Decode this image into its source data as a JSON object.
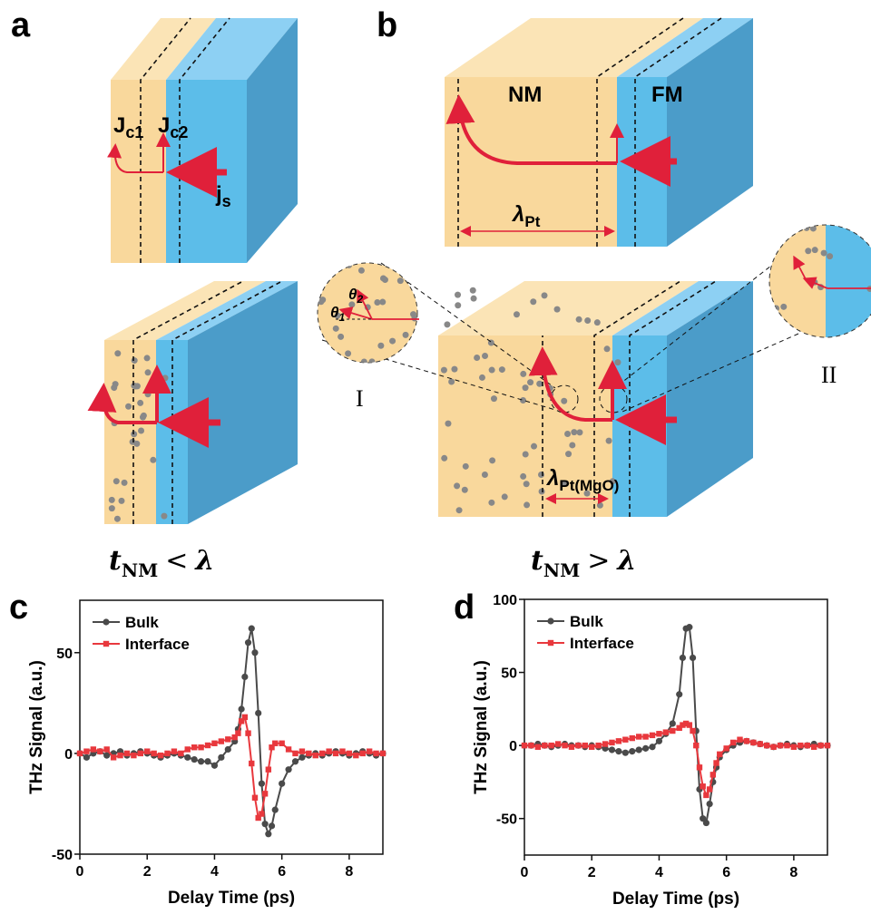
{
  "panel_labels": [
    "a",
    "b",
    "c",
    "d"
  ],
  "diagram_a": {
    "j_c1": {
      "symbol": "J",
      "sub": "c1"
    },
    "j_c2": {
      "symbol": "J",
      "sub": "c2"
    },
    "j_s": {
      "symbol": "j",
      "sub": "s"
    },
    "caption": {
      "symbol": "t",
      "sub": "NM",
      "relation": "<",
      "rhs": "λ"
    }
  },
  "diagram_b": {
    "nm": "NM",
    "fm": "FM",
    "lambda_pt": {
      "symbol": "λ",
      "sub": "Pt"
    },
    "theta_2": {
      "symbol": "θ",
      "sub": "2"
    },
    "theta_1": {
      "symbol": "θ",
      "sub": "1"
    },
    "inset_1": "I",
    "inset_2": "II",
    "lambda_pt_mgo": {
      "symbol": "λ",
      "sub": "Pt(MgO)"
    },
    "caption": {
      "symbol": "t",
      "sub": "NM",
      "relation": ">",
      "rhs": "λ"
    }
  },
  "chart_data": [
    {
      "type": "line",
      "xlabel": "Delay Time (ps)",
      "ylabel": "THz Signal (a.u.)",
      "xlim": [
        0,
        9
      ],
      "xticks": [
        0,
        2,
        4,
        6,
        8
      ],
      "ylim": [
        -50,
        76
      ],
      "yticks": [
        -50,
        0,
        50
      ],
      "legend": "upper left",
      "x": [
        0,
        0.2,
        0.4,
        0.6,
        0.8,
        1,
        1.2,
        1.4,
        1.6,
        1.8,
        2,
        2.2,
        2.4,
        2.6,
        2.8,
        3,
        3.2,
        3.4,
        3.6,
        3.8,
        4,
        4.2,
        4.4,
        4.6,
        4.7,
        4.8,
        4.9,
        5,
        5.1,
        5.2,
        5.3,
        5.4,
        5.5,
        5.6,
        5.7,
        5.8,
        6,
        6.2,
        6.4,
        6.6,
        6.8,
        7,
        7.2,
        7.4,
        7.6,
        7.8,
        8,
        8.2,
        8.4,
        8.6,
        8.8,
        9
      ],
      "series": [
        {
          "name": "Bulk",
          "color": "#4a4a4a",
          "marker": "circle",
          "values": [
            0,
            -2,
            0,
            1,
            -1,
            0,
            1,
            -1,
            0,
            1,
            0,
            -1,
            -2,
            -1,
            0,
            -1,
            -2,
            -3,
            -4,
            -4,
            -6,
            -2,
            2,
            6,
            12,
            22,
            38,
            55,
            62,
            50,
            20,
            -15,
            -35,
            -40,
            -36,
            -28,
            -15,
            -8,
            -4,
            -2,
            -1,
            0,
            -1,
            0,
            1,
            0,
            -1,
            0,
            1,
            0,
            -1,
            0
          ]
        },
        {
          "name": "Interface",
          "color": "#e8383d",
          "marker": "square",
          "values": [
            0,
            1,
            2,
            1,
            2,
            -2,
            -1,
            0,
            -1,
            0,
            1,
            0,
            -1,
            0,
            1,
            0,
            2,
            3,
            3,
            4,
            5,
            6,
            7,
            8,
            10,
            16,
            18,
            10,
            -5,
            -22,
            -32,
            -30,
            -20,
            -8,
            3,
            5,
            5,
            2,
            0,
            1,
            0,
            -1,
            0,
            1,
            0,
            1,
            0,
            -1,
            0,
            1,
            0,
            0
          ]
        }
      ]
    },
    {
      "type": "line",
      "xlabel": "Delay Time (ps)",
      "ylabel": "THz Signal (a.u.)",
      "xlim": [
        0,
        9
      ],
      "xticks": [
        0,
        2,
        4,
        6,
        8
      ],
      "ylim": [
        -75,
        100
      ],
      "yticks": [
        -50,
        0,
        50,
        100
      ],
      "legend": "upper left",
      "x": [
        0,
        0.2,
        0.4,
        0.6,
        0.8,
        1,
        1.2,
        1.4,
        1.6,
        1.8,
        2,
        2.2,
        2.4,
        2.6,
        2.8,
        3,
        3.2,
        3.4,
        3.6,
        3.8,
        4,
        4.2,
        4.4,
        4.6,
        4.7,
        4.8,
        4.9,
        5,
        5.1,
        5.2,
        5.3,
        5.4,
        5.5,
        5.6,
        5.7,
        5.8,
        6,
        6.2,
        6.4,
        6.6,
        6.8,
        7,
        7.2,
        7.4,
        7.6,
        7.8,
        8,
        8.2,
        8.4,
        8.6,
        8.8,
        9
      ],
      "series": [
        {
          "name": "Bulk",
          "color": "#4a4a4a",
          "marker": "circle",
          "values": [
            0,
            0,
            1,
            0,
            -1,
            0,
            1,
            0,
            0,
            -1,
            0,
            -1,
            -2,
            -3,
            -4,
            -5,
            -4,
            -3,
            -2,
            -1,
            3,
            8,
            15,
            35,
            60,
            80,
            81,
            60,
            10,
            -30,
            -50,
            -53,
            -40,
            -25,
            -15,
            -8,
            -3,
            0,
            2,
            3,
            2,
            1,
            0,
            -1,
            0,
            1,
            0,
            -1,
            0,
            1,
            0,
            0
          ]
        },
        {
          "name": "Interface",
          "color": "#e8383d",
          "marker": "square",
          "values": [
            0,
            0,
            -1,
            0,
            0,
            1,
            0,
            -1,
            0,
            0,
            -1,
            0,
            1,
            2,
            3,
            4,
            5,
            6,
            6,
            7,
            8,
            9,
            10,
            12,
            14,
            15,
            14,
            10,
            0,
            -15,
            -28,
            -34,
            -30,
            -20,
            -12,
            -6,
            -2,
            2,
            4,
            3,
            2,
            1,
            0,
            -1,
            0,
            0,
            -1,
            0,
            0,
            -1,
            0,
            0
          ]
        }
      ]
    }
  ]
}
